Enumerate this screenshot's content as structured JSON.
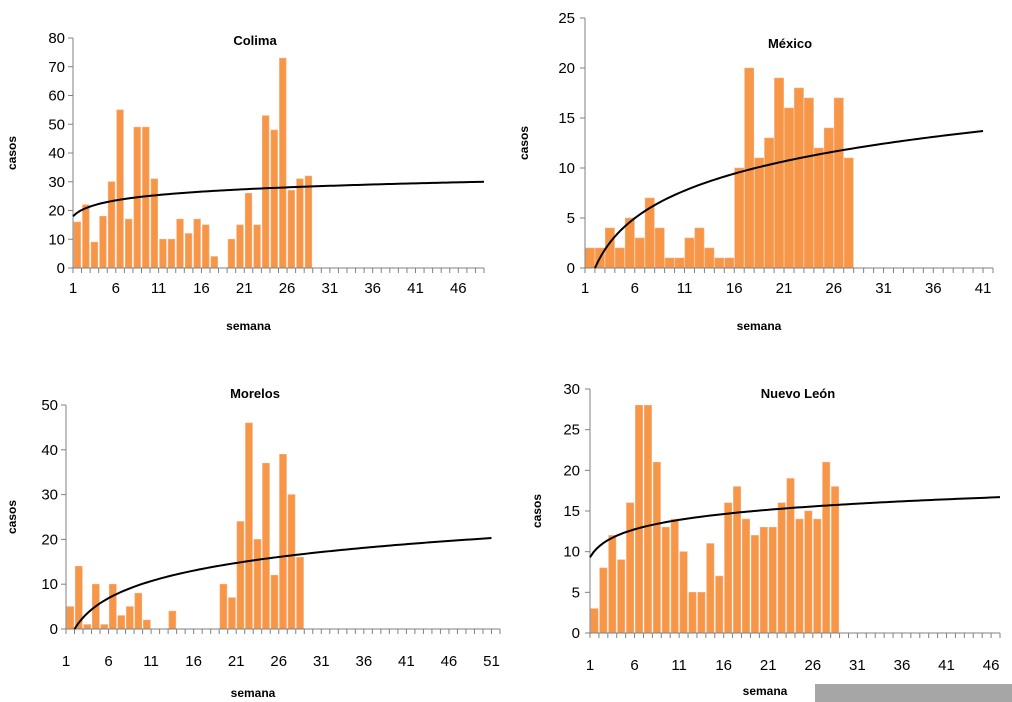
{
  "colors": {
    "bar": "#f79646",
    "bar_edge": "#f2b183",
    "trend": "#000000",
    "axis": "#808080"
  },
  "chart_data": [
    {
      "type": "bar",
      "title": "Colima",
      "xlabel": "semana",
      "ylabel": "casos",
      "ylim": [
        0,
        80
      ],
      "yticks": [
        0,
        10,
        20,
        30,
        40,
        50,
        60,
        70,
        80
      ],
      "xlim": [
        1,
        49
      ],
      "xticks": [
        1,
        6,
        11,
        16,
        21,
        26,
        31,
        36,
        41,
        46
      ],
      "x": [
        1,
        2,
        3,
        4,
        5,
        6,
        7,
        8,
        9,
        10,
        11,
        12,
        13,
        14,
        15,
        16,
        17,
        18,
        19,
        20,
        21,
        22,
        23,
        24,
        25,
        26,
        27,
        28
      ],
      "values": [
        16,
        22,
        9,
        18,
        30,
        55,
        17,
        49,
        49,
        31,
        10,
        10,
        17,
        12,
        17,
        15,
        4,
        0,
        10,
        15,
        26,
        15,
        53,
        48,
        73,
        27,
        31,
        32
      ],
      "trendline": {
        "type": "logarithmic",
        "x_range": [
          1,
          49
        ],
        "y_start": 18,
        "y_end": 30
      },
      "grid": false
    },
    {
      "type": "bar",
      "title": "México",
      "xlabel": "semana",
      "ylabel": "casos",
      "ylim": [
        0,
        25
      ],
      "yticks": [
        0,
        5,
        10,
        15,
        20,
        25
      ],
      "xlim": [
        1,
        42
      ],
      "xticks": [
        1,
        6,
        11,
        16,
        21,
        26,
        31,
        36,
        41
      ],
      "x": [
        1,
        2,
        3,
        4,
        5,
        6,
        7,
        8,
        9,
        10,
        11,
        12,
        13,
        14,
        15,
        16,
        17,
        18,
        19,
        20,
        21,
        22,
        23,
        24,
        25,
        26,
        27
      ],
      "values": [
        2,
        2,
        4,
        2,
        5,
        3,
        7,
        4,
        1,
        1,
        3,
        4,
        2,
        1,
        1,
        10,
        20,
        11,
        13,
        19,
        16,
        18,
        17,
        12,
        14,
        17,
        11
      ],
      "trendline": {
        "type": "logarithmic",
        "x_range": [
          2,
          41
        ],
        "y_start": 0,
        "y_end": 13.7
      },
      "grid": false
    },
    {
      "type": "bar",
      "title": "Morelos",
      "xlabel": "semana",
      "ylabel": "casos",
      "ylim": [
        0,
        50
      ],
      "yticks": [
        0,
        10,
        20,
        30,
        40,
        50
      ],
      "xlim": [
        1,
        52
      ],
      "xticks": [
        1,
        6,
        11,
        16,
        21,
        26,
        31,
        36,
        41,
        46,
        51
      ],
      "x": [
        1,
        2,
        3,
        4,
        5,
        6,
        7,
        8,
        9,
        10,
        11,
        12,
        13,
        14,
        15,
        16,
        17,
        18,
        19,
        20,
        21,
        22,
        23,
        24,
        25,
        26,
        27,
        28
      ],
      "values": [
        5,
        14,
        1,
        10,
        1,
        10,
        3,
        5,
        8,
        2,
        0,
        0,
        4,
        0,
        0,
        0,
        0,
        0,
        10,
        7,
        24,
        46,
        20,
        37,
        12,
        39,
        30,
        16
      ],
      "trendline": {
        "type": "logarithmic",
        "x_range": [
          2,
          51
        ],
        "y_start": 0,
        "y_end": 20.3
      },
      "grid": false
    },
    {
      "type": "bar",
      "title": "Nuevo León",
      "xlabel": "semana",
      "ylabel": "casos",
      "ylim": [
        0,
        30
      ],
      "yticks": [
        0,
        5,
        10,
        15,
        20,
        25,
        30
      ],
      "xlim": [
        1,
        47
      ],
      "xticks": [
        1,
        6,
        11,
        16,
        21,
        26,
        31,
        36,
        41,
        46
      ],
      "x": [
        1,
        2,
        3,
        4,
        5,
        6,
        7,
        8,
        9,
        10,
        11,
        12,
        13,
        14,
        15,
        16,
        17,
        18,
        19,
        20,
        21,
        22,
        23,
        24,
        25,
        26,
        27,
        28
      ],
      "values": [
        3,
        8,
        12,
        9,
        16,
        28,
        28,
        21,
        13,
        14,
        10,
        5,
        5,
        11,
        7,
        16,
        18,
        14,
        12,
        13,
        13,
        16,
        19,
        14,
        15,
        14,
        21,
        18
      ],
      "trendline": {
        "type": "logarithmic",
        "x_range": [
          1,
          47
        ],
        "y_start": 9.3,
        "y_end": 16.7
      },
      "grid": false
    }
  ]
}
